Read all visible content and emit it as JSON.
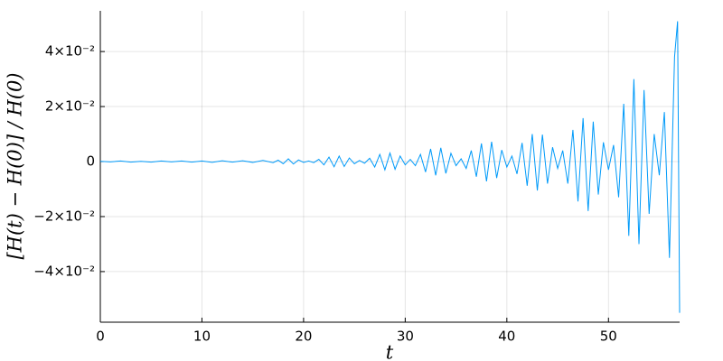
{
  "chart_data": {
    "type": "line",
    "xlabel": "t",
    "ylabel": "[H(t) − H(0)] / H(0)",
    "xlim": [
      0,
      57
    ],
    "xticks": [
      0,
      10,
      20,
      30,
      40,
      50
    ],
    "ylim": [
      -0.0584,
      0.0548
    ],
    "yticks": [
      {
        "value": -0.04,
        "label": "−4×10⁻²"
      },
      {
        "value": -0.02,
        "label": "−2×10⁻²"
      },
      {
        "value": 0,
        "label": "0"
      },
      {
        "value": 0.02,
        "label": "2×10⁻²"
      },
      {
        "value": 0.04,
        "label": "4×10⁻²"
      }
    ],
    "grid": true,
    "series": [
      {
        "color": "#009af9",
        "x": [
          0,
          1,
          2,
          3,
          4,
          5,
          6,
          7,
          8,
          9,
          10,
          11,
          12,
          13,
          14,
          15,
          16,
          17,
          17.5,
          18,
          18.5,
          19,
          19.5,
          20,
          20.5,
          21,
          21.5,
          22,
          22.5,
          23,
          23.5,
          24,
          24.5,
          25,
          25.5,
          26,
          26.5,
          27,
          27.5,
          28,
          28.5,
          29,
          29.5,
          30,
          30.5,
          31,
          31.5,
          32,
          32.5,
          33,
          33.5,
          34,
          34.5,
          35,
          35.5,
          36,
          36.5,
          37,
          37.5,
          38,
          38.5,
          39,
          39.5,
          40,
          40.5,
          41,
          41.5,
          42,
          42.5,
          43,
          43.5,
          44,
          44.5,
          45,
          45.5,
          46,
          46.5,
          47,
          47.5,
          48,
          48.5,
          49,
          49.5,
          50,
          50.5,
          51,
          51.5,
          52,
          52.5,
          53,
          53.5,
          54,
          54.5,
          55,
          55.5,
          56,
          56.5,
          56.8,
          57
        ],
        "values": [
          0.0001,
          -0.0001,
          0.0002,
          -0.0002,
          0.0001,
          -0.0002,
          0.0002,
          -0.0001,
          0.0002,
          -0.0002,
          0.0002,
          -0.0003,
          0.0003,
          -0.0002,
          0.0003,
          -0.0003,
          0.0004,
          -0.0004,
          0.0005,
          -0.0008,
          0.001,
          -0.0009,
          0.0006,
          -0.0003,
          0.0002,
          -0.0004,
          0.0008,
          -0.0012,
          0.0016,
          -0.0019,
          0.002,
          -0.0018,
          0.0013,
          -0.0008,
          0.0004,
          -0.0006,
          0.0012,
          -0.002,
          0.0026,
          -0.003,
          0.0031,
          -0.0028,
          0.002,
          -0.0012,
          0.0008,
          -0.0015,
          0.0026,
          -0.0038,
          0.0046,
          -0.005,
          0.005,
          -0.0043,
          0.003,
          -0.0015,
          0.001,
          -0.0025,
          0.004,
          -0.0055,
          0.0066,
          -0.0072,
          0.0072,
          -0.006,
          0.0042,
          -0.002,
          0.002,
          -0.0045,
          0.0068,
          -0.0088,
          0.01,
          -0.0105,
          0.0098,
          -0.008,
          0.0052,
          -0.0025,
          0.004,
          -0.008,
          0.0115,
          -0.0145,
          0.0158,
          -0.018,
          0.0145,
          -0.012,
          0.007,
          -0.003,
          0.006,
          -0.013,
          0.021,
          -0.027,
          0.03,
          -0.03,
          0.026,
          -0.019,
          0.01,
          -0.005,
          0.018,
          -0.035,
          0.038,
          0.051,
          -0.055
        ]
      }
    ]
  }
}
